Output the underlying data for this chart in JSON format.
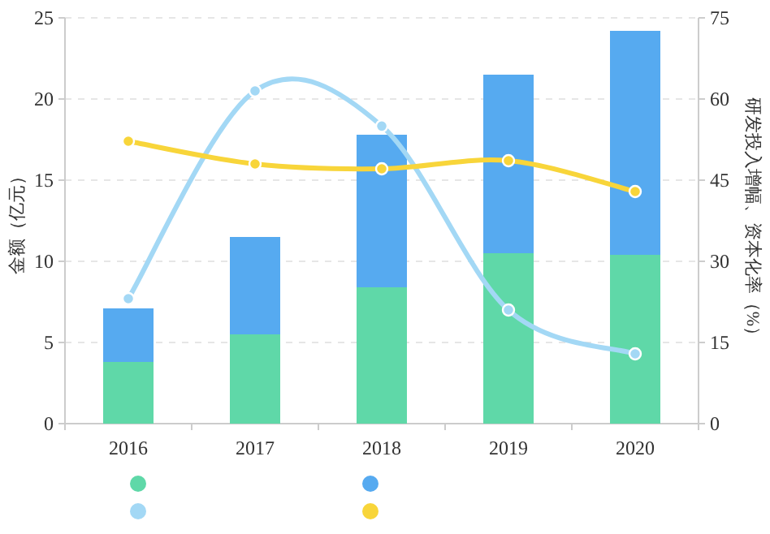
{
  "chart_data": {
    "type": "bar",
    "stacked": true,
    "categories": [
      "2016",
      "2017",
      "2018",
      "2019",
      "2020"
    ],
    "ylabel": "金额（亿元）",
    "y2label": "研发投入增幅、资本化率（%）",
    "ylim": [
      0,
      25
    ],
    "yticks": [
      0,
      5,
      10,
      15,
      20,
      25
    ],
    "y2lim": [
      0,
      75
    ],
    "y2ticks": [
      0,
      15,
      30,
      45,
      60,
      75
    ],
    "grid": "y",
    "marker": "circle",
    "series": [
      {
        "color": "#5fd8a8",
        "values": [
          3.8,
          5.5,
          8.4,
          10.5,
          10.4
        ]
      },
      {
        "color": "#56aaf0",
        "values": [
          3.3,
          6.0,
          9.4,
          11.0,
          13.8
        ]
      },
      {
        "type": "line",
        "axis": "y2",
        "color": "#a3d8f5",
        "values": [
          23.1,
          61.5,
          55,
          21,
          12.9
        ]
      },
      {
        "type": "line",
        "axis": "y2",
        "color": "#f8d53a",
        "values": [
          52.2,
          48,
          47.1,
          48.6,
          42.9
        ]
      }
    ]
  }
}
